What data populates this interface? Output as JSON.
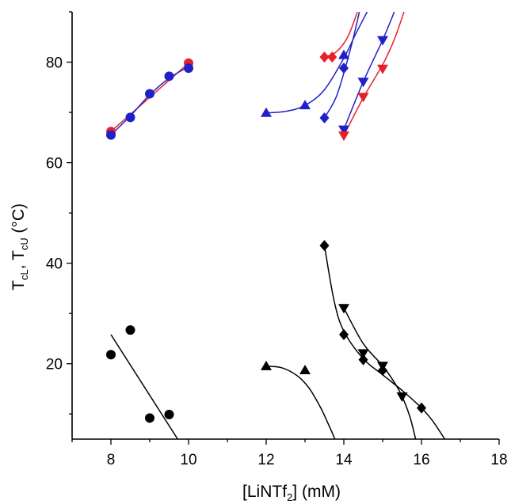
{
  "chart_data": {
    "type": "scatter",
    "title": "",
    "xlabel": "[LiNTf2] (mM)",
    "xlabel_parts": {
      "pre": "[LiNTf",
      "sub": "2",
      "post": "] (mM)"
    },
    "ylabel": "TcL, TcU (°C)",
    "ylabel_parts": {
      "t1": "T",
      "s1": "cL",
      "sep": ", T",
      "s2": "cU",
      "post": " (°C)"
    },
    "xlim": [
      7,
      18
    ],
    "ylim": [
      5,
      90
    ],
    "xticks": [
      8,
      10,
      12,
      14,
      16,
      18
    ],
    "yticks": [
      20,
      40,
      60,
      80
    ],
    "grid": false,
    "legend": "none",
    "series": [
      {
        "id": "upper-red-circle",
        "marker": "circle",
        "color": "#e8202a",
        "x": [
          8,
          10
        ],
        "y": [
          66.2,
          79.8
        ],
        "fit": {
          "x": [
            8,
            10
          ],
          "y": [
            66.2,
            79.8
          ]
        }
      },
      {
        "id": "upper-blue-circle",
        "marker": "circle",
        "color": "#2020c8",
        "x": [
          8,
          8.5,
          9,
          9.5,
          10
        ],
        "y": [
          65.5,
          69.0,
          73.7,
          77.2,
          78.8
        ],
        "fit": {
          "x": [
            8,
            8.5,
            9,
            9.5,
            10
          ],
          "y": [
            65.5,
            69.3,
            73.5,
            76.8,
            79.1
          ]
        }
      },
      {
        "id": "upper-red-diamond",
        "marker": "diamond",
        "color": "#e8202a",
        "x": [
          13.5,
          13.7
        ],
        "y": [
          81.0,
          81.0
        ],
        "fit": {
          "x": [
            13.5,
            13.8,
            14.1,
            14.35
          ],
          "y": [
            81.0,
            82.0,
            85.0,
            90.0
          ]
        }
      },
      {
        "id": "upper-blue-triangle",
        "marker": "triangle-up",
        "color": "#2020c8",
        "x": [
          12,
          13,
          14
        ],
        "y": [
          69.9,
          71.4,
          81.4
        ],
        "fit": {
          "x": [
            12,
            12.5,
            13,
            13.5,
            14,
            14.3,
            14.6
          ],
          "y": [
            69.9,
            70.2,
            71.4,
            74.5,
            80.8,
            85.5,
            90.0
          ]
        }
      },
      {
        "id": "upper-blue-diamond",
        "marker": "diamond",
        "color": "#2020c8",
        "x": [
          13.5,
          14
        ],
        "y": [
          68.9,
          78.8
        ],
        "fit": {
          "x": [
            13.5,
            13.8,
            14.05,
            14.25,
            14.4
          ],
          "y": [
            68.9,
            73.0,
            79.2,
            85.0,
            90.0
          ]
        }
      },
      {
        "id": "upper-blue-triangle-down",
        "marker": "triangle-down",
        "color": "#2020c8",
        "x": [
          14,
          14.5,
          15
        ],
        "y": [
          66.6,
          76.1,
          84.4
        ],
        "fit": {
          "x": [
            14,
            14.5,
            15,
            15.3
          ],
          "y": [
            66.6,
            76.1,
            84.4,
            90.0
          ]
        }
      },
      {
        "id": "upper-red-triangle-down",
        "marker": "triangle-down",
        "color": "#e8202a",
        "x": [
          14,
          14.5,
          15
        ],
        "y": [
          65.4,
          73.1,
          78.7
        ],
        "fit": {
          "x": [
            14,
            14.5,
            15,
            15.3,
            15.55
          ],
          "y": [
            65.4,
            72.9,
            79.5,
            84.5,
            90.0
          ]
        }
      },
      {
        "id": "lower-black-circle",
        "marker": "circle",
        "color": "#000000",
        "x": [
          8,
          8.5,
          9,
          9.5
        ],
        "y": [
          21.8,
          26.7,
          9.2,
          9.9
        ],
        "fit": {
          "x": [
            8,
            9.72
          ],
          "y": [
            25.8,
            5.0
          ]
        }
      },
      {
        "id": "lower-black-triangle",
        "marker": "triangle-up",
        "color": "#000000",
        "x": [
          12,
          13
        ],
        "y": [
          19.5,
          18.7
        ],
        "fit": {
          "x": [
            12,
            12.4,
            12.8,
            13.1,
            13.4,
            13.6,
            13.8
          ],
          "y": [
            19.5,
            19.2,
            17.6,
            15.2,
            11.3,
            8.0,
            4.5
          ]
        }
      },
      {
        "id": "lower-black-diamond",
        "marker": "diamond",
        "color": "#000000",
        "x": [
          13.5,
          14,
          14.5,
          15,
          16
        ],
        "y": [
          43.5,
          25.8,
          20.8,
          18.7,
          11.2
        ],
        "fit": {
          "x": [
            13.5,
            13.75,
            14,
            14.5,
            15,
            15.5,
            16,
            16.3,
            16.6
          ],
          "y": [
            43.5,
            32.5,
            26.5,
            21.0,
            17.8,
            14.7,
            11.2,
            8.5,
            5.0
          ]
        }
      },
      {
        "id": "lower-black-triangle-down",
        "marker": "triangle-down",
        "color": "#000000",
        "x": [
          14,
          14.5,
          15,
          15.5
        ],
        "y": [
          31.1,
          22.1,
          19.6,
          13.5
        ],
        "fit": {
          "x": [
            14,
            14.5,
            15,
            15.3,
            15.5,
            15.7,
            15.85
          ],
          "y": [
            31.1,
            24.0,
            19.6,
            16.3,
            13.5,
            9.5,
            5.0
          ]
        }
      }
    ]
  }
}
